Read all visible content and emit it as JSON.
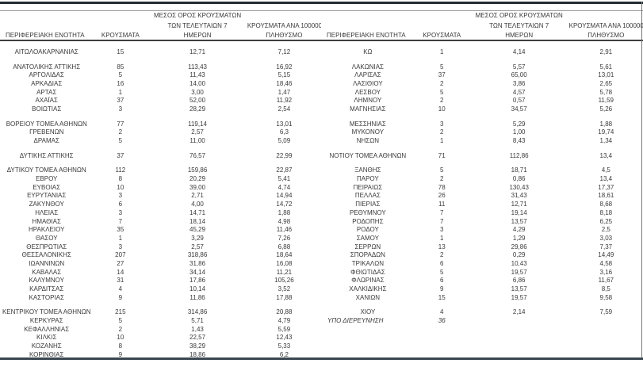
{
  "colors": {
    "text": "#3a3a3a",
    "rule_dark": "#262c31",
    "rule_gray": "#9b9b9b",
    "rule_mid": "#3f3f3f",
    "rule_bottom": "#3a4750"
  },
  "headers": {
    "region": "ΠΕΡΙΦΕΡΕΙΑΚΗ ΕΝΟΤΗΤΑ",
    "cases": "ΚΡΟΥΣΜΑΤΑ",
    "avg7_line1": "ΜΕΣΟΣ ΟΡΟΣ ΚΡΟΥΣΜΑΤΩΝ",
    "avg7_line2": "ΤΩΝ ΤΕΛΕΥΤΑΙΩΝ 7",
    "avg7_line3": "ΗΜΕΡΩΝ",
    "per100k_line1": "ΚΡΟΥΣΜΑΤΑ ΑΝΑ 100000",
    "per100k_line2": "ΠΛΗΘΥΣΜΟ"
  },
  "tables": [
    {
      "groups": [
        [
          [
            "ΑΙΤΩΛΟΑΚΑΡΝΑΝΙΑΣ",
            "15",
            "12,71",
            "7,12"
          ]
        ],
        [
          [
            "ΑΝΑΤΟΛΙΚΗΣ ΑΤΤΙΚΗΣ",
            "85",
            "113,43",
            "16,92"
          ],
          [
            "ΑΡΓΟΛΙΔΑΣ",
            "5",
            "11,43",
            "5,15"
          ],
          [
            "ΑΡΚΑΔΙΑΣ",
            "16",
            "14,00",
            "18,46"
          ],
          [
            "ΑΡΤΑΣ",
            "1",
            "3,00",
            "1,47"
          ],
          [
            "ΑΧΑΪΑΣ",
            "37",
            "52,00",
            "11,92"
          ],
          [
            "ΒΟΙΩΤΙΑΣ",
            "3",
            "28,29",
            "2,54"
          ]
        ],
        [
          [
            "ΒΟΡΕΙΟΥ ΤΟΜΕΑ ΑΘΗΝΩΝ",
            "77",
            "119,14",
            "13,01"
          ],
          [
            "ΓΡΕΒΕΝΩΝ",
            "2",
            "2,57",
            "6,3"
          ],
          [
            "ΔΡΑΜΑΣ",
            "5",
            "11,00",
            "5,09"
          ]
        ],
        [
          [
            "ΔΥΤΙΚΗΣ ΑΤΤΙΚΗΣ",
            "37",
            "76,57",
            "22,99"
          ]
        ],
        [
          [
            "ΔΥΤΙΚΟΥ ΤΟΜΕΑ ΑΘΗΝΩΝ",
            "112",
            "159,86",
            "22,87"
          ],
          [
            "ΕΒΡΟΥ",
            "8",
            "20,29",
            "5,41"
          ],
          [
            "ΕΥΒΟΙΑΣ",
            "10",
            "39,00",
            "4,74"
          ],
          [
            "ΕΥΡΥΤΑΝΙΑΣ",
            "3",
            "2,71",
            "14,94"
          ],
          [
            "ΖΑΚΥΝΘΟΥ",
            "6",
            "4,00",
            "14,72"
          ],
          [
            "ΗΛΕΙΑΣ",
            "3",
            "14,71",
            "1,88"
          ],
          [
            "ΗΜΑΘΙΑΣ",
            "7",
            "18,14",
            "4,98"
          ],
          [
            "ΗΡΑΚΛΕΙΟΥ",
            "35",
            "45,29",
            "11,46"
          ],
          [
            "ΘΑΣΟΥ",
            "1",
            "3,29",
            "7,26"
          ],
          [
            "ΘΕΣΠΡΩΤΙΑΣ",
            "3",
            "2,57",
            "6,88"
          ],
          [
            "ΘΕΣΣΑΛΟΝΙΚΗΣ",
            "207",
            "318,86",
            "18,64"
          ],
          [
            "ΙΩΑΝΝΙΝΩΝ",
            "27",
            "31,86",
            "16,08"
          ],
          [
            "ΚΑΒΑΛΑΣ",
            "14",
            "34,14",
            "11,21"
          ],
          [
            "ΚΑΛΥΜΝΟΥ",
            "31",
            "17,86",
            "105,26"
          ],
          [
            "ΚΑΡΔΙΤΣΑΣ",
            "4",
            "10,14",
            "3,52"
          ],
          [
            "ΚΑΣΤΟΡΙΑΣ",
            "9",
            "11,86",
            "17,88"
          ]
        ],
        [
          [
            "ΚΕΝΤΡΙΚΟΥ ΤΟΜΕΑ ΑΘΗΝΩΝ",
            "215",
            "314,86",
            "20,88"
          ],
          [
            "ΚΕΡΚΥΡΑΣ",
            "5",
            "5,71",
            "4,79"
          ],
          [
            "ΚΕΦΑΛΛΗΝΙΑΣ",
            "2",
            "1,43",
            "5,59"
          ],
          [
            "ΚΙΛΚΙΣ",
            "10",
            "22,57",
            "12,43"
          ],
          [
            "ΚΟΖΑΝΗΣ",
            "8",
            "38,29",
            "5,33"
          ],
          [
            "ΚΟΡΙΝΘΙΑΣ",
            "9",
            "18,86",
            "6,2"
          ]
        ]
      ]
    },
    {
      "groups": [
        [
          [
            "ΚΩ",
            "1",
            "4,14",
            "2,91"
          ]
        ],
        [
          [
            "ΛΑΚΩΝΙΑΣ",
            "5",
            "5,57",
            "5,61"
          ],
          [
            "ΛΑΡΙΣΑΣ",
            "37",
            "65,00",
            "13,01"
          ],
          [
            "ΛΑΣΙΘΙΟΥ",
            "2",
            "3,86",
            "2,65"
          ],
          [
            "ΛΕΣΒΟΥ",
            "5",
            "4,57",
            "5,78"
          ],
          [
            "ΛΗΜΝΟΥ",
            "2",
            "0,57",
            "11,59"
          ],
          [
            "ΜΑΓΝΗΣΙΑΣ",
            "10",
            "34,57",
            "5,26"
          ]
        ],
        [
          [
            "ΜΕΣΣΗΝΙΑΣ",
            "3",
            "5,29",
            "1,88"
          ],
          [
            "ΜΥΚΟΝΟΥ",
            "2",
            "1,00",
            "19,74"
          ],
          [
            "ΝΗΣΩΝ",
            "1",
            "8,43",
            "1,34"
          ]
        ],
        [
          [
            "ΝΟΤΙΟΥ ΤΟΜΕΑ ΑΘΗΝΩΝ",
            "71",
            "112,86",
            "13,4"
          ]
        ],
        [
          [
            "ΞΑΝΘΗΣ",
            "5",
            "18,71",
            "4,5"
          ],
          [
            "ΠΑΡΟΥ",
            "2",
            "0,86",
            "13,4"
          ],
          [
            "ΠΕΙΡΑΙΩΣ",
            "78",
            "130,43",
            "17,37"
          ],
          [
            "ΠΕΛΛΑΣ",
            "26",
            "31,43",
            "18,61"
          ],
          [
            "ΠΙΕΡΙΑΣ",
            "11",
            "12,71",
            "8,68"
          ],
          [
            "ΡΕΘΥΜΝΟΥ",
            "7",
            "19,14",
            "8,18"
          ],
          [
            "ΡΟΔΟΠΗΣ",
            "7",
            "13,57",
            "6,25"
          ],
          [
            "ΡΟΔΟΥ",
            "3",
            "4,29",
            "2,5"
          ],
          [
            "ΣΑΜΟΥ",
            "1",
            "1,29",
            "3,03"
          ],
          [
            "ΣΕΡΡΩΝ",
            "13",
            "29,86",
            "7,37"
          ],
          [
            "ΣΠΟΡΑΔΩΝ",
            "2",
            "0,29",
            "14,49"
          ],
          [
            "ΤΡΙΚΑΛΩΝ",
            "6",
            "10,43",
            "4,58"
          ],
          [
            "ΦΘΙΩΤΙΔΑΣ",
            "5",
            "19,57",
            "3,16"
          ],
          [
            "ΦΛΩΡΙΝΑΣ",
            "6",
            "6,86",
            "11,67"
          ],
          [
            "ΧΑΛΚΙΔΙΚΗΣ",
            "9",
            "13,57",
            "8,5"
          ],
          [
            "ΧΑΝΙΩΝ",
            "15",
            "19,57",
            "9,58"
          ]
        ],
        [
          [
            "ΧΙΟΥ",
            "4",
            "2,14",
            "7,59"
          ],
          [
            "ΥΠΟ ΔΙΕΡΕΥΝΗΣΗ",
            "36",
            "",
            "",
            "italic"
          ]
        ]
      ]
    }
  ]
}
